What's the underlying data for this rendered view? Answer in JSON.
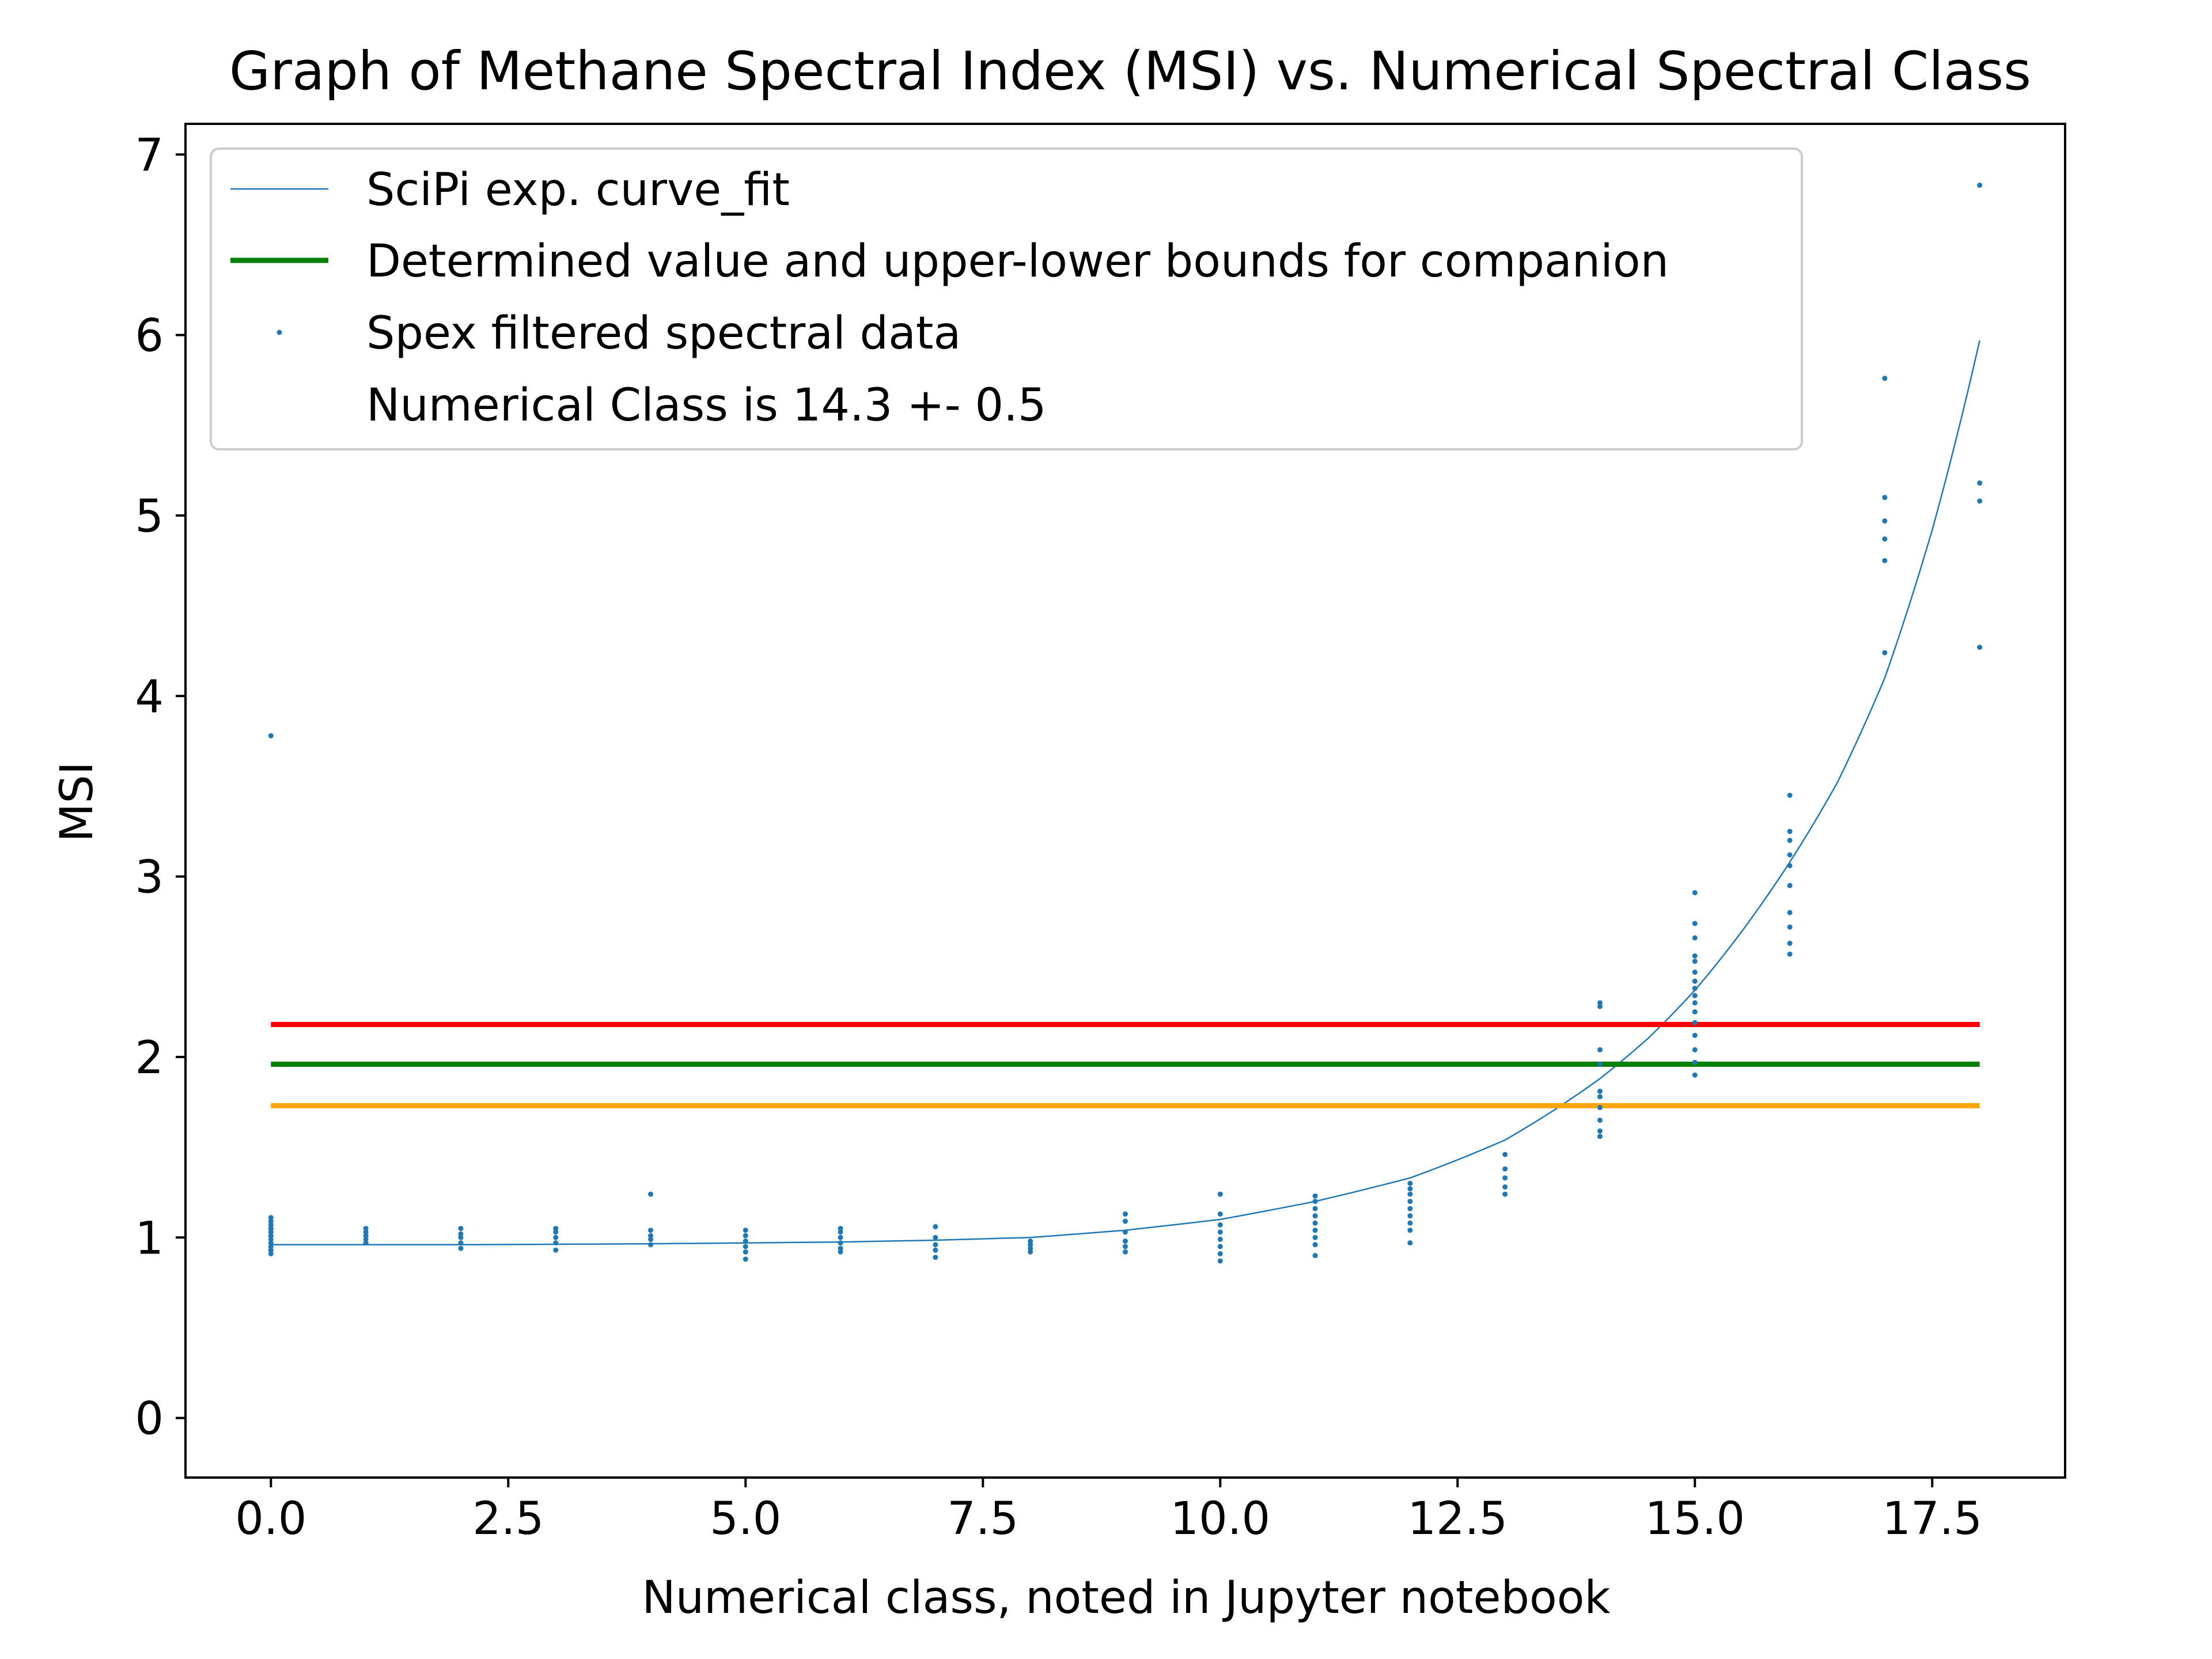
{
  "chart_data": {
    "type": "scatter",
    "title": "Graph of Methane Spectral Index (MSI) vs. Numerical Spectral Class",
    "xlabel": "Numerical class, noted in Jupyter notebook",
    "ylabel": "MSI",
    "xlim": [
      -0.9,
      18.9
    ],
    "ylim": [
      -0.33,
      7.17
    ],
    "xticks": [
      0.0,
      2.5,
      5.0,
      7.5,
      10.0,
      12.5,
      15.0,
      17.5
    ],
    "xtick_labels": [
      "0.0",
      "2.5",
      "5.0",
      "7.5",
      "10.0",
      "12.5",
      "15.0",
      "17.5"
    ],
    "yticks": [
      0,
      1,
      2,
      3,
      4,
      5,
      6,
      7
    ],
    "ytick_labels": [
      "0",
      "1",
      "2",
      "3",
      "4",
      "5",
      "6",
      "7"
    ],
    "grid": false,
    "legend_position": "top-left",
    "legend": [
      {
        "label": "SciPi exp. curve_fit",
        "kind": "thin-line",
        "color": "#1f77b4"
      },
      {
        "label": "Determined value and upper-lower bounds for companion",
        "kind": "thick-line",
        "color": "#008000"
      },
      {
        "label": "Spex filtered spectral data",
        "kind": "dot",
        "color": "#1f77b4"
      },
      {
        "label": "Numerical Class is 14.3 +- 0.5",
        "kind": "none",
        "color": ""
      }
    ],
    "fit_curve": {
      "name": "SciPi exp. curve_fit",
      "color": "#1f77b4",
      "x_range": [
        0,
        18
      ],
      "samples": [
        [
          0,
          0.96
        ],
        [
          2,
          0.96
        ],
        [
          4,
          0.965
        ],
        [
          6,
          0.975
        ],
        [
          7,
          0.985
        ],
        [
          8,
          1.0
        ],
        [
          9,
          1.04
        ],
        [
          10,
          1.1
        ],
        [
          11,
          1.2
        ],
        [
          12,
          1.33
        ],
        [
          12.5,
          1.43
        ],
        [
          13,
          1.54
        ],
        [
          13.5,
          1.7
        ],
        [
          14,
          1.88
        ],
        [
          14.5,
          2.1
        ],
        [
          15,
          2.37
        ],
        [
          15.5,
          2.7
        ],
        [
          16,
          3.08
        ],
        [
          16.5,
          3.52
        ],
        [
          17,
          4.1
        ],
        [
          17.5,
          4.92
        ],
        [
          18,
          5.97
        ]
      ]
    },
    "hlines": [
      {
        "name": "upper bound",
        "y": 2.18,
        "color": "#ff0000",
        "x_range": [
          0,
          18
        ]
      },
      {
        "name": "Determined value and upper-lower bounds for companion",
        "y": 1.96,
        "color": "#008000",
        "x_range": [
          0,
          18
        ]
      },
      {
        "name": "lower bound",
        "y": 1.73,
        "color": "#ffa500",
        "x_range": [
          0,
          18
        ]
      }
    ],
    "scatter": {
      "name": "Spex filtered spectral data",
      "color": "#1f77b4",
      "points": [
        [
          0,
          3.78
        ],
        [
          0,
          1.11
        ],
        [
          0,
          1.09
        ],
        [
          0,
          1.07
        ],
        [
          0,
          1.05
        ],
        [
          0,
          1.03
        ],
        [
          0,
          1.01
        ],
        [
          0,
          0.99
        ],
        [
          0,
          0.97
        ],
        [
          0,
          0.95
        ],
        [
          0,
          0.93
        ],
        [
          0,
          0.91
        ],
        [
          1,
          1.05
        ],
        [
          1,
          1.03
        ],
        [
          1,
          1.01
        ],
        [
          1,
          0.99
        ],
        [
          1,
          0.97
        ],
        [
          2,
          1.05
        ],
        [
          2,
          1.02
        ],
        [
          2,
          1.0
        ],
        [
          2,
          0.97
        ],
        [
          2,
          0.94
        ],
        [
          3,
          1.05
        ],
        [
          3,
          1.03
        ],
        [
          3,
          1.0
        ],
        [
          3,
          0.97
        ],
        [
          3,
          0.93
        ],
        [
          4,
          1.24
        ],
        [
          4,
          1.04
        ],
        [
          4,
          1.01
        ],
        [
          4,
          0.99
        ],
        [
          4,
          0.96
        ],
        [
          5,
          1.04
        ],
        [
          5,
          1.01
        ],
        [
          5,
          0.98
        ],
        [
          5,
          0.95
        ],
        [
          5,
          0.92
        ],
        [
          5,
          0.88
        ],
        [
          6,
          1.05
        ],
        [
          6,
          1.03
        ],
        [
          6,
          1.0
        ],
        [
          6,
          0.97
        ],
        [
          6,
          0.94
        ],
        [
          6,
          0.92
        ],
        [
          7,
          1.06
        ],
        [
          7,
          1.0
        ],
        [
          7,
          0.96
        ],
        [
          7,
          0.93
        ],
        [
          7,
          0.89
        ],
        [
          8,
          0.98
        ],
        [
          8,
          0.96
        ],
        [
          8,
          0.94
        ],
        [
          8,
          0.92
        ],
        [
          9,
          1.13
        ],
        [
          9,
          1.09
        ],
        [
          9,
          1.03
        ],
        [
          9,
          0.98
        ],
        [
          9,
          0.95
        ],
        [
          9,
          0.92
        ],
        [
          10,
          1.24
        ],
        [
          10,
          1.13
        ],
        [
          10,
          1.07
        ],
        [
          10,
          1.03
        ],
        [
          10,
          0.99
        ],
        [
          10,
          0.95
        ],
        [
          10,
          0.91
        ],
        [
          10,
          0.87
        ],
        [
          11,
          1.23
        ],
        [
          11,
          1.2
        ],
        [
          11,
          1.16
        ],
        [
          11,
          1.12
        ],
        [
          11,
          1.08
        ],
        [
          11,
          1.04
        ],
        [
          11,
          1.0
        ],
        [
          11,
          0.96
        ],
        [
          11,
          0.9
        ],
        [
          12,
          1.3
        ],
        [
          12,
          1.27
        ],
        [
          12,
          1.24
        ],
        [
          12,
          1.2
        ],
        [
          12,
          1.16
        ],
        [
          12,
          1.12
        ],
        [
          12,
          1.08
        ],
        [
          12,
          1.04
        ],
        [
          12,
          0.97
        ],
        [
          13,
          1.46
        ],
        [
          13,
          1.38
        ],
        [
          13,
          1.33
        ],
        [
          13,
          1.28
        ],
        [
          13,
          1.24
        ],
        [
          14,
          2.3
        ],
        [
          14,
          2.28
        ],
        [
          14,
          2.04
        ],
        [
          14,
          1.96
        ],
        [
          14,
          1.81
        ],
        [
          14,
          1.78
        ],
        [
          14,
          1.72
        ],
        [
          14,
          1.65
        ],
        [
          14,
          1.59
        ],
        [
          14,
          1.56
        ],
        [
          15,
          2.91
        ],
        [
          15,
          2.74
        ],
        [
          15,
          2.66
        ],
        [
          15,
          2.56
        ],
        [
          15,
          2.53
        ],
        [
          15,
          2.47
        ],
        [
          15,
          2.42
        ],
        [
          15,
          2.38
        ],
        [
          15,
          2.34
        ],
        [
          15,
          2.3
        ],
        [
          15,
          2.25
        ],
        [
          15,
          2.19
        ],
        [
          15,
          2.12
        ],
        [
          15,
          2.04
        ],
        [
          15,
          1.97
        ],
        [
          15,
          1.9
        ],
        [
          16,
          3.45
        ],
        [
          16,
          3.25
        ],
        [
          16,
          3.2
        ],
        [
          16,
          3.12
        ],
        [
          16,
          3.06
        ],
        [
          16,
          2.95
        ],
        [
          16,
          2.8
        ],
        [
          16,
          2.72
        ],
        [
          16,
          2.63
        ],
        [
          16,
          2.57
        ],
        [
          17,
          5.76
        ],
        [
          17,
          5.1
        ],
        [
          17,
          4.97
        ],
        [
          17,
          4.87
        ],
        [
          17,
          4.75
        ],
        [
          17,
          4.24
        ],
        [
          18,
          6.83
        ],
        [
          18,
          5.18
        ],
        [
          18,
          5.08
        ],
        [
          18,
          4.27
        ]
      ]
    }
  }
}
